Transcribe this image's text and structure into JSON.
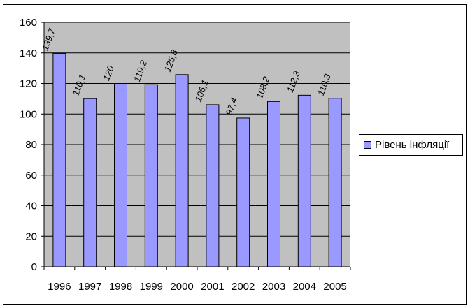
{
  "chart_data": {
    "type": "bar",
    "title": "",
    "xlabel": "",
    "ylabel": "",
    "categories": [
      "1996",
      "1997",
      "1998",
      "1999",
      "2000",
      "2001",
      "2002",
      "2003",
      "2004",
      "2005"
    ],
    "series": [
      {
        "name": "Рівень інфляції",
        "values": [
          139.7,
          110.1,
          120,
          119.2,
          125.8,
          106.1,
          97.4,
          108.2,
          112.3,
          110.3
        ],
        "labels": [
          "139,7",
          "110,1",
          "120",
          "119,2",
          "125,8",
          "106,1",
          "97,4",
          "108,2",
          "112,3",
          "110,3"
        ]
      }
    ],
    "ylim": [
      0,
      160
    ],
    "yticks": [
      0,
      20,
      40,
      60,
      80,
      100,
      120,
      140,
      160
    ],
    "grid": true,
    "legend": "right",
    "colors": {
      "plot_bg": "#c0c0c0",
      "bar_fill": "#9999ff",
      "bar_stroke": "#000000",
      "grid": "#000000"
    }
  }
}
